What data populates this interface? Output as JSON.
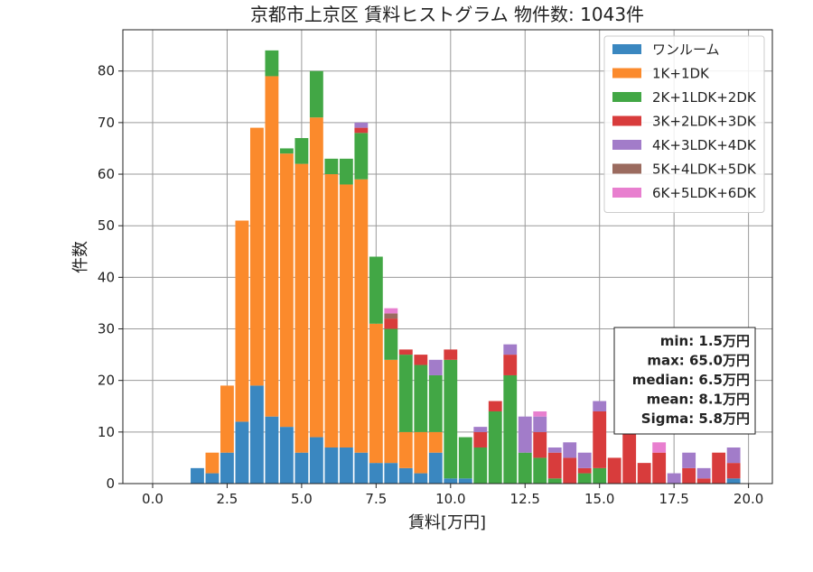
{
  "chart_data": {
    "type": "bar",
    "stacked": true,
    "title": "京都市上京区 賃料ヒストグラム 物件数: 1043件",
    "xlabel": "賃料[万円]",
    "ylabel": "件数",
    "xlim": [
      -1.0,
      20.8
    ],
    "ylim": [
      0,
      88
    ],
    "x_ticks": [
      0.0,
      2.5,
      5.0,
      7.5,
      10.0,
      12.5,
      15.0,
      17.5,
      20.0
    ],
    "x_tick_labels": [
      "0.0",
      "2.5",
      "5.0",
      "7.5",
      "10.0",
      "12.5",
      "15.0",
      "17.5",
      "20.0"
    ],
    "y_ticks": [
      0,
      10,
      20,
      30,
      40,
      50,
      60,
      70,
      80
    ],
    "y_tick_labels": [
      "0",
      "10",
      "20",
      "30",
      "40",
      "50",
      "60",
      "70",
      "80"
    ],
    "grid": true,
    "legend_position": "top-right",
    "bar_width": 0.45,
    "x": [
      1.5,
      2.0,
      2.5,
      3.0,
      3.5,
      4.0,
      4.5,
      5.0,
      5.5,
      6.0,
      6.5,
      7.0,
      7.5,
      8.0,
      8.5,
      9.0,
      9.5,
      10.0,
      10.5,
      11.0,
      11.5,
      12.0,
      12.5,
      13.0,
      13.5,
      14.0,
      14.5,
      15.0,
      15.5,
      16.0,
      16.5,
      17.0,
      17.5,
      18.0,
      18.5,
      19.0,
      19.5
    ],
    "series": [
      {
        "name": "ワンルーム",
        "color": "#3a87c0",
        "values": [
          3,
          2,
          6,
          12,
          19,
          13,
          11,
          6,
          9,
          7,
          7,
          6,
          4,
          4,
          3,
          2,
          6,
          1,
          1,
          0,
          0,
          0,
          0,
          0,
          0,
          0,
          0,
          0,
          0,
          0,
          0,
          0,
          0,
          0,
          0,
          0,
          1
        ]
      },
      {
        "name": "1K+1DK",
        "color": "#fb8a2c",
        "values": [
          0,
          4,
          13,
          39,
          50,
          66,
          53,
          56,
          62,
          53,
          51,
          53,
          27,
          20,
          7,
          8,
          4,
          0,
          0,
          0,
          0,
          0,
          0,
          0,
          0,
          0,
          0,
          0,
          0,
          0,
          0,
          0,
          0,
          0,
          0,
          0,
          0
        ]
      },
      {
        "name": "2K+1LDK+2DK",
        "color": "#42a745",
        "values": [
          0,
          0,
          0,
          0,
          0,
          5,
          1,
          5,
          9,
          3,
          5,
          9,
          13,
          6,
          15,
          13,
          11,
          23,
          8,
          7,
          14,
          21,
          6,
          5,
          1,
          0,
          2,
          3,
          0,
          0,
          0,
          0,
          0,
          0,
          0,
          0,
          0
        ]
      },
      {
        "name": "3K+2LDK+3DK",
        "color": "#d83c3c",
        "values": [
          0,
          0,
          0,
          0,
          0,
          0,
          0,
          0,
          0,
          0,
          0,
          1,
          0,
          2,
          1,
          2,
          0,
          2,
          0,
          3,
          2,
          4,
          0,
          5,
          5,
          5,
          1,
          11,
          5,
          10,
          4,
          6,
          0,
          3,
          1,
          6,
          3
        ]
      },
      {
        "name": "4K+3LDK+4DK",
        "color": "#a27cc9",
        "values": [
          0,
          0,
          0,
          0,
          0,
          0,
          0,
          0,
          0,
          0,
          0,
          1,
          0,
          0,
          0,
          0,
          3,
          0,
          0,
          1,
          0,
          2,
          7,
          3,
          1,
          3,
          3,
          2,
          0,
          0,
          0,
          0,
          2,
          3,
          2,
          0,
          3
        ]
      },
      {
        "name": "5K+4LDK+5DK",
        "color": "#9b6b5f",
        "values": [
          0,
          0,
          0,
          0,
          0,
          0,
          0,
          0,
          0,
          0,
          0,
          0,
          0,
          1,
          0,
          0,
          0,
          0,
          0,
          0,
          0,
          0,
          0,
          0,
          0,
          0,
          0,
          0,
          0,
          0,
          0,
          0,
          0,
          0,
          0,
          0,
          0
        ]
      },
      {
        "name": "6K+5LDK+6DK",
        "color": "#e87fcf",
        "values": [
          0,
          0,
          0,
          0,
          0,
          0,
          0,
          0,
          0,
          0,
          0,
          0,
          0,
          1,
          0,
          0,
          0,
          0,
          0,
          0,
          0,
          0,
          0,
          1,
          0,
          0,
          0,
          0,
          0,
          0,
          0,
          2,
          0,
          0,
          0,
          0,
          0
        ]
      }
    ],
    "stats_box": {
      "position": "right",
      "lines": [
        "min: 1.5万円",
        "max: 65.0万円",
        "median: 6.5万円",
        "mean: 8.1万円",
        "Sigma: 5.8万円"
      ]
    }
  }
}
